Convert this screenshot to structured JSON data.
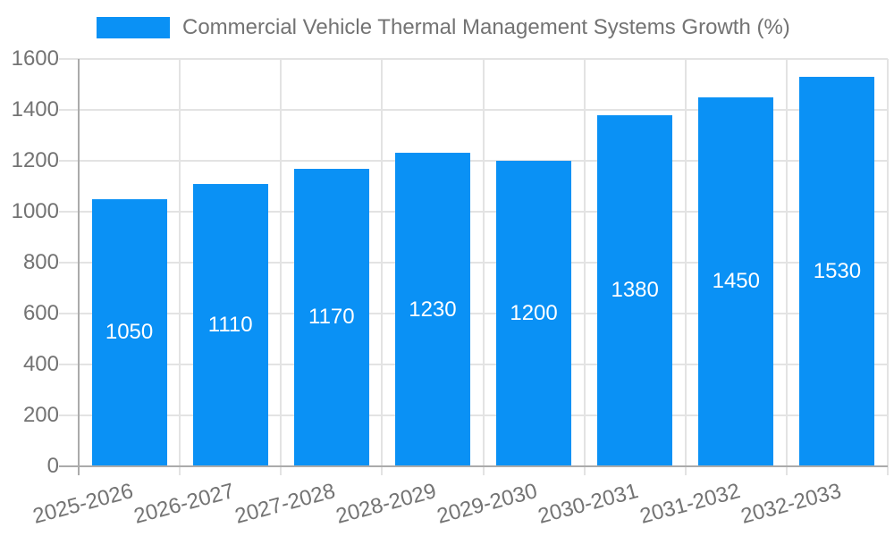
{
  "chart_data": {
    "type": "bar",
    "title": "Commercial Vehicle Thermal Management Systems Growth (%)",
    "categories": [
      "2025-2026",
      "2026-2027",
      "2027-2028",
      "2028-2029",
      "2029-2030",
      "2030-2031",
      "2031-2032",
      "2032-2033"
    ],
    "values": [
      1050,
      1110,
      1170,
      1230,
      1200,
      1380,
      1450,
      1530
    ],
    "bar_value_labels": [
      "1050",
      "1110",
      "1170",
      "1230",
      "1200",
      "1380",
      "1450",
      "1530"
    ],
    "xlabel": "",
    "ylabel": "",
    "ylim": [
      0,
      1600
    ],
    "ytick_step": 200,
    "ytick_labels": [
      "0",
      "200",
      "400",
      "600",
      "800",
      "1000",
      "1200",
      "1400",
      "1600"
    ],
    "grid": true,
    "legend_position": "top-left",
    "x_tick_rotation_deg": 15
  },
  "colors": {
    "bar": "#0a91f5",
    "bar_label": "#ffffff",
    "axis_text": "#737373",
    "gridline": "#e3e3e3",
    "axis_line": "#ababab",
    "background": "#ffffff"
  }
}
